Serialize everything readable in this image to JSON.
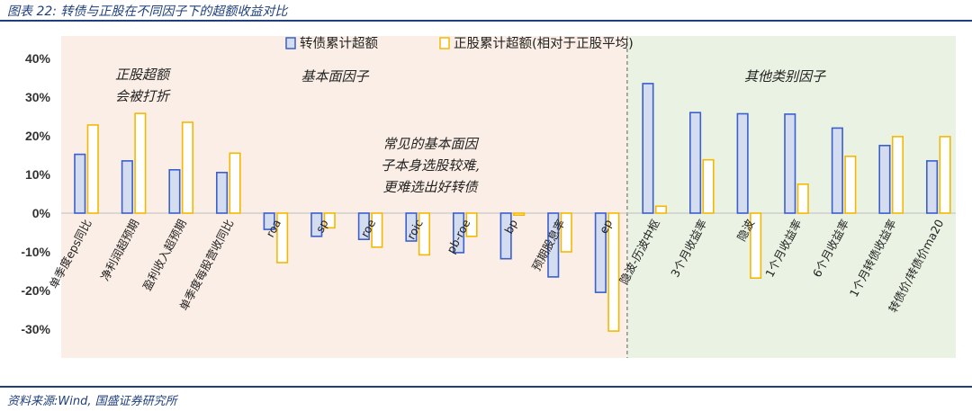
{
  "figure": {
    "title": "图表 22:  转债与正股在不同因子下的超额收益对比",
    "source": "资料来源:Wind, 国盛证券研究所"
  },
  "colors": {
    "blue_fill": "#d4dcf0",
    "blue_stroke": "#3b5fcc",
    "yellow_fill": "#ffffff",
    "yellow_stroke": "#f5b800",
    "left_bg": "#fbeee6",
    "right_bg": "#eaf2e3"
  },
  "annotations": {
    "left_group_label": "基本面因子",
    "right_group_label": "其他类别因子",
    "note_top_left": [
      "正股超额",
      "会被打折"
    ],
    "note_middle": [
      "常见的基本面因",
      "子本身选股较难,",
      "更难选出好转债"
    ]
  },
  "chart_data": {
    "type": "bar",
    "categories": [
      "单季度eps同比",
      "净利润超预期",
      "盈利收入超预期",
      "单季度每股营收同比",
      "roa",
      "sp",
      "roe",
      "roic",
      "pb-roe",
      "bp",
      "预期股息率",
      "ep",
      "隐波-历波中枢",
      "3个月收益率",
      "隐波",
      "1个月收益率",
      "6个月收益率",
      "1个月转债收益率",
      "转债价/转债价ma20"
    ],
    "series": [
      {
        "name": "转债累计超额",
        "values": [
          15.2,
          13.5,
          11.2,
          10.5,
          -4.2,
          -6.0,
          -6.8,
          -7.2,
          -10.2,
          -11.8,
          -16.5,
          -20.5,
          33.5,
          26.0,
          25.7,
          25.6,
          22.0,
          17.5,
          13.5
        ]
      },
      {
        "name": "正股累计超额(相对于正股平均)",
        "values": [
          22.8,
          25.8,
          23.5,
          15.5,
          -12.8,
          -3.8,
          -8.8,
          -10.8,
          -6.0,
          -0.5,
          -10.0,
          -30.5,
          1.8,
          13.8,
          -16.8,
          7.5,
          14.7,
          19.8,
          19.8
        ]
      }
    ],
    "ylim": [
      -30,
      40
    ],
    "yticks": [
      "40%",
      "30%",
      "20%",
      "10%",
      "0%",
      "-10%",
      "-20%",
      "-30%"
    ],
    "divider_after_index": 11
  }
}
